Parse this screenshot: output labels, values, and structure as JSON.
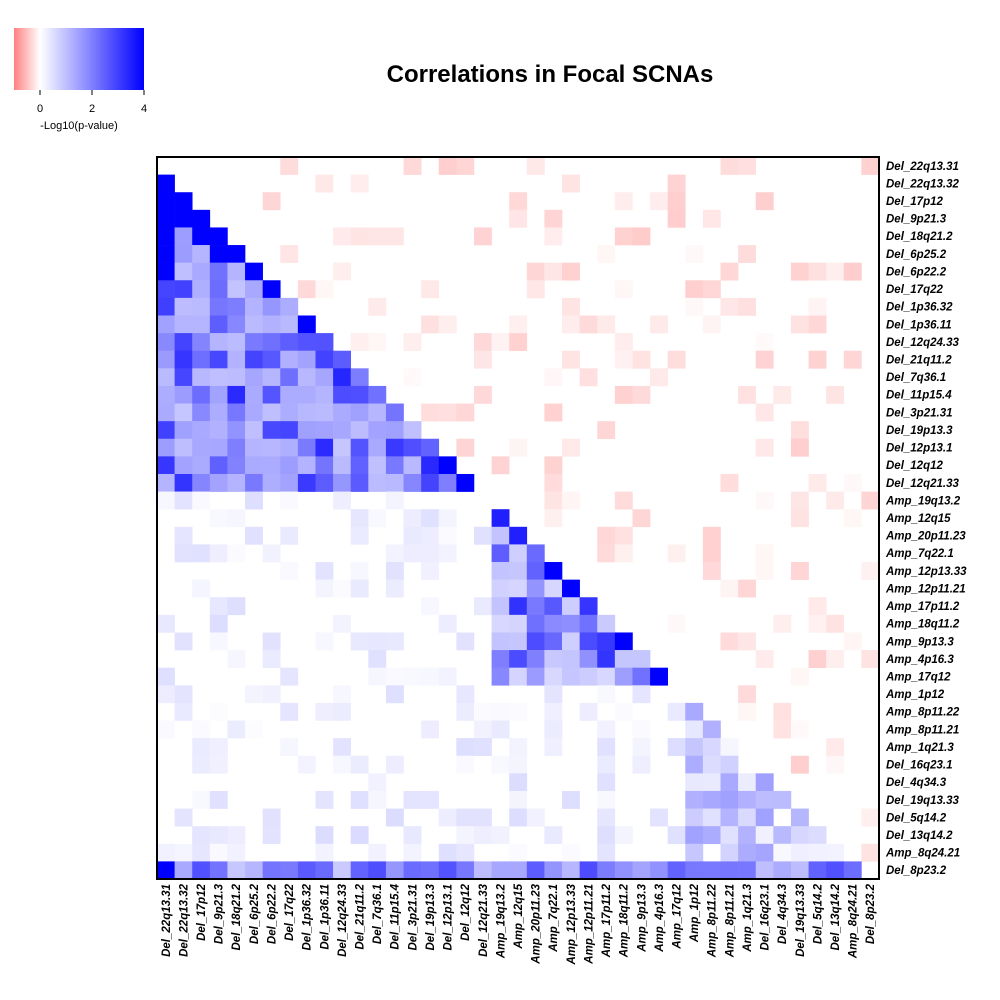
{
  "chart_data": {
    "type": "heatmap",
    "title": "Correlations in Focal SCNAs",
    "labels": [
      "Del_22q13.31",
      "Del_22q13.32",
      "Del_17p12",
      "Del_9p21.3",
      "Del_18q21.2",
      "Del_6p25.2",
      "Del_6p22.2",
      "Del_17q22",
      "Del_1p36.32",
      "Del_1p36.11",
      "Del_12q24.33",
      "Del_21q11.2",
      "Del_7q36.1",
      "Del_11p15.4",
      "Del_3p21.31",
      "Del_19p13.3",
      "Del_12p13.1",
      "Del_12q12",
      "Del_12q21.33",
      "Amp_19q13.2",
      "Amp_12q15",
      "Amp_20p11.23",
      "Amp_7q22.1",
      "Amp_12p13.33",
      "Amp_12p11.21",
      "Amp_17p11.2",
      "Amp_18q11.2",
      "Amp_9p13.3",
      "Amp_4p16.3",
      "Amp_17q12",
      "Amp_1p12",
      "Amp_8p11.22",
      "Amp_8p11.21",
      "Amp_1q21.3",
      "Del_16q23.1",
      "Del_4q34.3",
      "Del_19q13.33",
      "Del_5q14.2",
      "Del_13q14.2",
      "Amp_8q24.21",
      "Del_8p23.2"
    ],
    "lower_triangle": "-log10(p-value) of positive correlation (blue)",
    "upper_triangle": "-log10(p-value) of negative correlation (red, shown as negative)",
    "color_scale": {
      "label": "-Log10(p-value)",
      "ticks": [
        0,
        2,
        4
      ],
      "range": [
        -1,
        4
      ],
      "low_color": "#ff8080",
      "mid_color": "#ffffff",
      "high_color": "#0000ff"
    },
    "strong_pairs": [
      [
        "Del_22q13.32",
        "Del_22q13.31",
        4
      ],
      [
        "Del_17p12",
        "Del_22q13.31",
        4
      ],
      [
        "Del_17p12",
        "Del_22q13.32",
        4
      ],
      [
        "Del_9p21.3",
        "Del_22q13.31",
        4
      ],
      [
        "Del_9p21.3",
        "Del_22q13.32",
        4
      ],
      [
        "Del_9p21.3",
        "Del_17p12",
        4
      ],
      [
        "Del_18q21.2",
        "Del_22q13.31",
        4
      ],
      [
        "Del_18q21.2",
        "Del_17p12",
        4
      ],
      [
        "Del_18q21.2",
        "Del_9p21.3",
        4
      ],
      [
        "Del_6p25.2",
        "Del_22q13.31",
        4
      ],
      [
        "Del_6p25.2",
        "Del_9p21.3",
        4
      ],
      [
        "Del_6p25.2",
        "Del_18q21.2",
        4
      ],
      [
        "Del_6p22.2",
        "Del_22q13.31",
        4
      ],
      [
        "Del_6p22.2",
        "Del_6p25.2",
        4
      ],
      [
        "Del_17q22",
        "Del_6p22.2",
        4
      ],
      [
        "Del_1p36.11",
        "Del_1p36.32",
        4
      ],
      [
        "Del_12q21.33",
        "Del_12q12",
        4
      ],
      [
        "Del_12q12",
        "Del_12p13.1",
        4
      ],
      [
        "Amp_12q15",
        "Amp_19q13.2",
        3.5
      ],
      [
        "Amp_20p11.23",
        "Amp_12q15",
        3.5
      ],
      [
        "Amp_12p13.33",
        "Amp_7q22.1",
        4
      ],
      [
        "Amp_12p11.21",
        "Amp_12p13.33",
        4
      ],
      [
        "Amp_9p13.3",
        "Amp_18q11.2",
        4
      ],
      [
        "Amp_17q12",
        "Amp_4p16.3",
        4
      ],
      [
        "Del_8p23.2",
        "Del_22q13.31",
        4
      ]
    ]
  }
}
